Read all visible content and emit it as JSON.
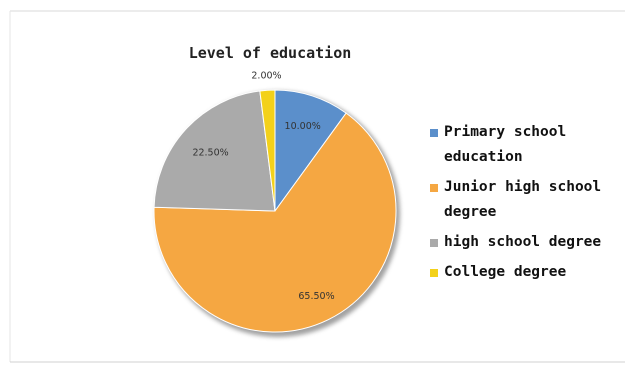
{
  "chart_data": {
    "type": "pie",
    "title": "Level of education",
    "categories": [
      "Primary school education",
      "Junior high school degree",
      "high school degree",
      "College degree"
    ],
    "values": [
      10.0,
      65.5,
      22.5,
      2.0
    ],
    "data_labels": [
      "10.00%",
      "65.50%",
      "22.50%",
      "2.00%"
    ],
    "colors": [
      "#5b8fcb",
      "#f5a742",
      "#aaaaaa",
      "#f3d11a"
    ],
    "legend_position": "right",
    "legend": [
      {
        "label": "Primary school education",
        "color": "#5b8fcb"
      },
      {
        "label": "Junior high school degree",
        "color": "#f5a742"
      },
      {
        "label": "high school degree",
        "color": "#aaaaaa"
      },
      {
        "label": "College degree",
        "color": "#f3d11a"
      }
    ]
  }
}
